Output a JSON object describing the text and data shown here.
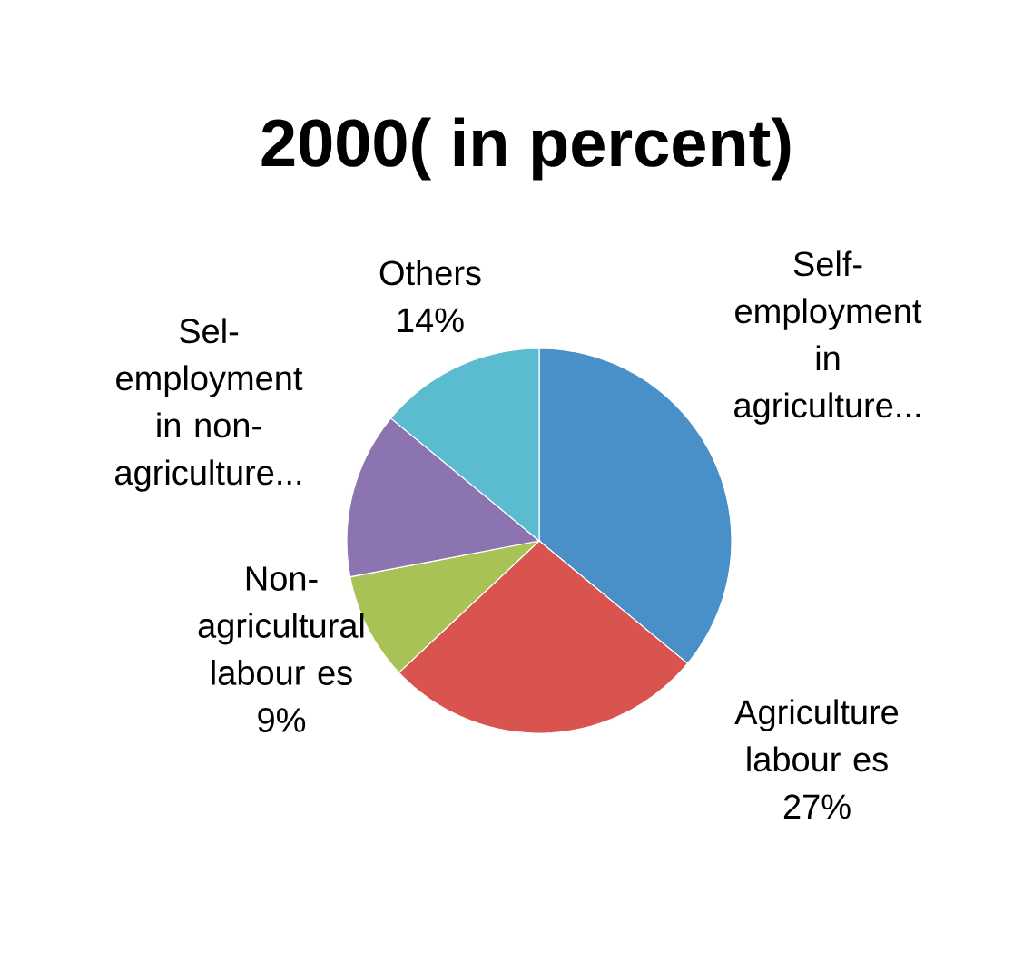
{
  "chart_data": {
    "type": "pie",
    "title": "2000( in percent)",
    "categories": [
      "Self-employment in agriculture...",
      "Agriculture labour es",
      "Non-agricultural labour es",
      "Sel-employment in non-agriculture...",
      "Others"
    ],
    "values": [
      36,
      27,
      9,
      14,
      14
    ],
    "value_labels": [
      null,
      "27%",
      "9%",
      null,
      "14%"
    ],
    "colors": [
      "#4a90c8",
      "#d9534f",
      "#a8c256",
      "#8b74b0",
      "#5bbccf"
    ]
  }
}
